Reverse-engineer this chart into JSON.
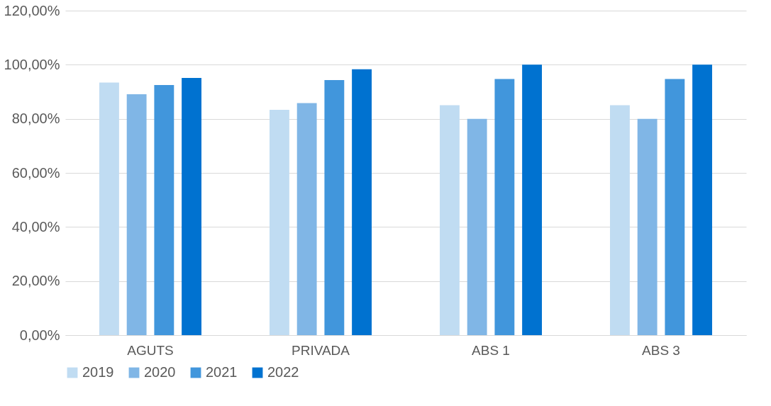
{
  "chart_data": {
    "type": "bar",
    "categories": [
      "AGUTS",
      "PRIVADA",
      "ABS 1",
      "ABS 3"
    ],
    "series": [
      {
        "name": "2019",
        "color": "#c0dcf2",
        "values": [
          93.4,
          83.3,
          85.0,
          85.0
        ]
      },
      {
        "name": "2020",
        "color": "#80b6e6",
        "values": [
          89.1,
          85.8,
          80.0,
          80.0
        ]
      },
      {
        "name": "2021",
        "color": "#4196dc",
        "values": [
          92.5,
          94.3,
          94.7,
          94.7
        ]
      },
      {
        "name": "2022",
        "color": "#0072d0",
        "values": [
          95.1,
          98.3,
          100,
          100
        ]
      }
    ],
    "ylim": [
      0,
      120
    ],
    "yticks": [
      {
        "value": 0,
        "label": "0,00%"
      },
      {
        "value": 20,
        "label": "20,00%"
      },
      {
        "value": 40,
        "label": "40,00%"
      },
      {
        "value": 60,
        "label": "60,00%"
      },
      {
        "value": 80,
        "label": "80,00%"
      },
      {
        "value": 100,
        "label": "100,00%"
      },
      {
        "value": 120,
        "label": "120,00%"
      }
    ],
    "grid": "y",
    "legend": "bottom"
  }
}
